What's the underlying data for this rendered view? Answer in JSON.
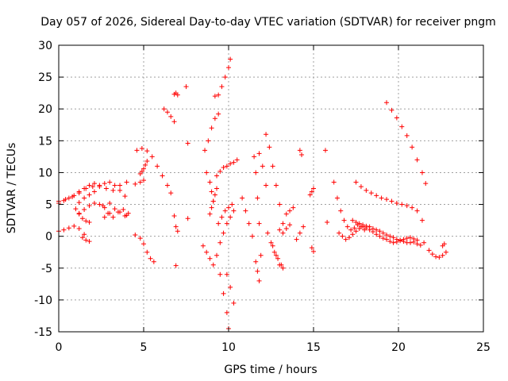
{
  "chart_data": {
    "type": "scatter",
    "title": "Day 057 of 2026, Sidereal Day-to-day VTEC variation (SDTVAR) for receiver pngm",
    "xlabel": "GPS time / hours",
    "ylabel": "SDTVAR / TECUs",
    "xlim": [
      0,
      25
    ],
    "ylim": [
      -15,
      30
    ],
    "xticks": [
      0,
      5,
      10,
      15,
      20,
      25
    ],
    "yticks": [
      -15,
      -10,
      -5,
      0,
      5,
      10,
      15,
      20,
      25,
      30
    ],
    "xtick_labels": [
      "0",
      "5",
      "10",
      "15",
      "20",
      "25"
    ],
    "ytick_labels": [
      "-15",
      "-10",
      "-5",
      "0",
      "5",
      "10",
      "15",
      "20",
      "25",
      "30"
    ],
    "grid": true,
    "marker": "plus",
    "color": "#ff0000",
    "series": [
      {
        "name": "a1",
        "x": [
          0.0,
          0.4,
          0.8,
          1.2,
          1.6,
          2.0,
          2.4,
          2.8,
          3.2,
          3.6,
          4.0
        ],
        "y": [
          5.5,
          5.8,
          6.2,
          6.8,
          7.5,
          7.8,
          8.0,
          7.5,
          7.2,
          8.0,
          8.5
        ]
      },
      {
        "name": "a2",
        "x": [
          0.0,
          0.3,
          0.6,
          0.9,
          1.2,
          1.5,
          1.8,
          2.1
        ],
        "y": [
          5.2,
          5.6,
          6.0,
          6.4,
          7.0,
          7.5,
          8.0,
          8.3
        ]
      },
      {
        "name": "a3",
        "x": [
          1.2,
          1.5,
          1.8,
          2.1,
          2.4,
          2.7,
          3.0,
          3.3,
          3.6,
          3.9
        ],
        "y": [
          5.3,
          6.0,
          6.5,
          7.0,
          7.8,
          8.3,
          8.5,
          8.0,
          7.2,
          6.3
        ]
      },
      {
        "name": "a4",
        "x": [
          2.6,
          2.9,
          3.2,
          3.5,
          3.8,
          4.0
        ],
        "y": [
          4.8,
          3.6,
          3.0,
          3.8,
          4.2,
          3.3
        ]
      },
      {
        "name": "b1",
        "x": [
          1.2,
          1.5,
          1.8,
          2.1,
          2.4,
          2.7,
          3.0
        ],
        "y": [
          3.5,
          4.2,
          4.8,
          5.2,
          5.0,
          4.5,
          5.2
        ]
      },
      {
        "name": "b2",
        "x": [
          1.0,
          1.2,
          1.4,
          1.6,
          1.8
        ],
        "y": [
          4.3,
          3.6,
          2.8,
          2.4,
          2.2
        ]
      },
      {
        "name": "b3",
        "x": [
          2.7,
          3.0,
          3.3,
          3.6,
          3.9,
          4.1
        ],
        "y": [
          3.0,
          3.6,
          4.3,
          3.8,
          3.2,
          3.6
        ]
      },
      {
        "name": "c1",
        "x": [
          0.0,
          0.3,
          0.6,
          0.9,
          1.2,
          1.5
        ],
        "y": [
          0.8,
          1.0,
          1.3,
          1.6,
          1.2,
          0.3
        ]
      },
      {
        "name": "c2",
        "x": [
          1.4,
          1.6,
          1.8
        ],
        "y": [
          -0.2,
          -0.6,
          -0.8
        ]
      },
      {
        "name": "d1",
        "x": [
          4.6,
          4.9,
          5.2,
          5.5,
          5.8,
          6.1,
          6.4,
          6.6
        ],
        "y": [
          13.5,
          13.8,
          13.4,
          12.5,
          11.0,
          9.5,
          8.0,
          6.8
        ]
      },
      {
        "name": "d2",
        "x": [
          4.8,
          4.9,
          5.0,
          5.1,
          5.2
        ],
        "y": [
          9.8,
          10.2,
          10.6,
          11.2,
          11.8
        ]
      },
      {
        "name": "d3",
        "x": [
          4.5,
          4.8,
          5.0,
          5.2,
          5.4,
          5.6
        ],
        "y": [
          0.2,
          -0.3,
          -1.2,
          -2.5,
          -3.5,
          -4.0
        ]
      },
      {
        "name": "d4",
        "x": [
          4.5,
          4.8,
          5.0
        ],
        "y": [
          8.2,
          8.5,
          8.8
        ]
      },
      {
        "name": "e1",
        "x": [
          6.2,
          6.4,
          6.6,
          6.8
        ],
        "y": [
          20.0,
          19.5,
          18.8,
          18.0
        ]
      },
      {
        "name": "e2",
        "x": [
          6.8,
          6.9,
          7.0
        ],
        "y": [
          22.3,
          22.5,
          22.2
        ]
      },
      {
        "name": "e3",
        "x": [
          6.8,
          6.9,
          7.0
        ],
        "y": [
          3.2,
          1.5,
          0.8
        ]
      },
      {
        "name": "e4",
        "x": [
          7.5,
          7.6
        ],
        "y": [
          23.5,
          14.6
        ]
      },
      {
        "name": "e5",
        "x": [
          6.9,
          7.6
        ],
        "y": [
          -4.6,
          2.8
        ]
      },
      {
        "name": "f1",
        "x": [
          8.6,
          8.8,
          9.0,
          9.2,
          9.4
        ],
        "y": [
          13.5,
          15.0,
          17.0,
          18.5,
          19.2
        ]
      },
      {
        "name": "f2",
        "x": [
          8.7,
          8.9,
          9.0,
          9.1
        ],
        "y": [
          10.0,
          8.5,
          7.0,
          5.5
        ]
      },
      {
        "name": "f3",
        "x": [
          8.9,
          9.0,
          9.1,
          9.2,
          9.3
        ],
        "y": [
          3.5,
          4.5,
          5.5,
          6.5,
          7.5
        ]
      },
      {
        "name": "f4",
        "x": [
          8.5,
          8.7,
          8.9,
          9.1
        ],
        "y": [
          -1.5,
          -2.5,
          -3.5,
          -4.5
        ]
      },
      {
        "name": "g1",
        "x": [
          9.2,
          9.4,
          9.6,
          9.8,
          10.0,
          10.1
        ],
        "y": [
          22.0,
          22.2,
          23.5,
          25.0,
          26.5,
          27.8
        ]
      },
      {
        "name": "g2",
        "x": [
          9.3,
          9.5,
          9.7,
          9.9,
          10.1,
          10.3,
          10.5
        ],
        "y": [
          9.5,
          10.2,
          10.8,
          11.0,
          11.4,
          11.6,
          12.0
        ]
      },
      {
        "name": "g3",
        "x": [
          9.3,
          9.5,
          9.7,
          9.9,
          10.0
        ],
        "y": [
          -3.0,
          -6.0,
          -9.0,
          -12.0,
          -14.5
        ]
      },
      {
        "name": "g4",
        "x": [
          9.4,
          9.6,
          9.8,
          10.0,
          10.2
        ],
        "y": [
          2.0,
          3.0,
          4.0,
          4.5,
          5.0
        ]
      },
      {
        "name": "g5",
        "x": [
          9.5,
          9.7,
          9.9,
          10.1,
          10.3
        ],
        "y": [
          -1.0,
          0.5,
          2.0,
          3.0,
          4.0
        ]
      },
      {
        "name": "g6",
        "x": [
          9.9,
          10.1,
          10.3
        ],
        "y": [
          -6.0,
          -8.0,
          -10.5
        ]
      },
      {
        "name": "h1",
        "x": [
          10.8,
          11.0,
          11.2,
          11.4
        ],
        "y": [
          6.0,
          4.0,
          2.0,
          0.0
        ]
      },
      {
        "name": "h2",
        "x": [
          11.5,
          11.6,
          11.7,
          11.8,
          11.9
        ],
        "y": [
          12.5,
          10.0,
          6.0,
          2.0,
          -3.0
        ]
      },
      {
        "name": "h3",
        "x": [
          11.6,
          11.7,
          11.8
        ],
        "y": [
          -4.0,
          -5.5,
          -7.0
        ]
      },
      {
        "name": "h4",
        "x": [
          11.8,
          12.0,
          12.2
        ],
        "y": [
          13.0,
          11.0,
          8.0
        ]
      },
      {
        "name": "i1",
        "x": [
          12.2,
          12.4,
          12.6,
          12.8,
          13.0,
          13.2
        ],
        "y": [
          16.0,
          14.0,
          11.0,
          8.0,
          5.0,
          2.0
        ]
      },
      {
        "name": "i2",
        "x": [
          12.3,
          12.5,
          12.7,
          12.9,
          13.1
        ],
        "y": [
          0.5,
          -1.0,
          -2.5,
          -3.5,
          -4.5
        ]
      },
      {
        "name": "i3",
        "x": [
          12.6,
          12.8,
          13.0,
          13.2
        ],
        "y": [
          -1.5,
          -3.0,
          -4.5,
          -5.0
        ]
      },
      {
        "name": "i4",
        "x": [
          13.0,
          13.2,
          13.4,
          13.6
        ],
        "y": [
          1.0,
          0.5,
          1.2,
          1.8
        ]
      },
      {
        "name": "i5",
        "x": [
          13.4,
          13.6,
          13.8
        ],
        "y": [
          3.5,
          4.0,
          4.5
        ]
      },
      {
        "name": "j1",
        "x": [
          14.0,
          14.2,
          14.4
        ],
        "y": [
          -0.5,
          0.5,
          1.5
        ]
      },
      {
        "name": "j2",
        "x": [
          14.2,
          14.3
        ],
        "y": [
          13.5,
          12.8
        ]
      },
      {
        "name": "j3",
        "x": [
          14.8,
          14.9,
          15.0
        ],
        "y": [
          6.5,
          7.0,
          7.5
        ]
      },
      {
        "name": "j4",
        "x": [
          14.9,
          15.0
        ],
        "y": [
          -1.8,
          -2.4
        ]
      },
      {
        "name": "k1",
        "x": [
          15.7,
          15.8
        ],
        "y": [
          13.5,
          2.2
        ]
      },
      {
        "name": "l1",
        "x": [
          16.2,
          16.4,
          16.6,
          16.8,
          17.0,
          17.2,
          17.4,
          17.6,
          17.8,
          18.0
        ],
        "y": [
          8.5,
          6.0,
          4.0,
          2.5,
          1.5,
          1.0,
          1.3,
          1.8,
          1.5,
          1.0
        ]
      },
      {
        "name": "l2",
        "x": [
          16.5,
          16.7,
          16.9,
          17.1,
          17.3,
          17.5,
          17.7,
          17.9,
          18.1,
          18.3,
          18.5,
          18.7,
          18.9,
          19.1,
          19.3,
          19.5,
          19.7,
          19.9,
          20.1,
          20.3,
          20.5,
          20.7,
          20.9,
          21.1,
          21.3,
          21.5
        ],
        "y": [
          0.5,
          0.0,
          -0.5,
          -0.2,
          0.3,
          0.8,
          1.2,
          1.5,
          1.3,
          1.0,
          0.7,
          0.3,
          0.0,
          -0.3,
          -0.5,
          -0.8,
          -1.0,
          -0.9,
          -0.7,
          -0.8,
          -1.0,
          -1.0,
          -0.9,
          -1.2,
          -1.4,
          -1.0
        ]
      },
      {
        "name": "l3",
        "x": [
          17.3,
          17.5,
          17.7,
          17.9,
          18.1,
          18.3,
          18.5,
          18.7,
          18.9,
          19.1,
          19.3,
          19.5,
          19.7,
          19.9,
          20.1,
          20.3,
          20.5,
          20.7,
          20.9,
          21.1
        ],
        "y": [
          2.5,
          2.2,
          2.0,
          1.8,
          1.6,
          1.5,
          1.2,
          1.0,
          0.8,
          0.5,
          0.2,
          0.0,
          -0.2,
          -0.5,
          -0.6,
          -0.5,
          -0.3,
          -0.2,
          -0.4,
          -0.6
        ]
      },
      {
        "name": "m1",
        "x": [
          17.5,
          17.8,
          18.1,
          18.4,
          18.7,
          19.0,
          19.3,
          19.6,
          19.9,
          20.2,
          20.5,
          20.8,
          21.1,
          21.4
        ],
        "y": [
          8.5,
          7.8,
          7.2,
          6.8,
          6.4,
          6.0,
          5.8,
          5.5,
          5.2,
          5.0,
          4.8,
          4.5,
          4.0,
          2.5
        ]
      },
      {
        "name": "n1",
        "x": [
          19.3,
          19.6,
          19.9,
          20.2,
          20.5,
          20.8,
          21.1,
          21.4,
          21.6
        ],
        "y": [
          21.0,
          19.8,
          18.6,
          17.2,
          15.8,
          14.0,
          12.0,
          10.0,
          8.3
        ]
      },
      {
        "name": "o1",
        "x": [
          21.8,
          22.0,
          22.2,
          22.4,
          22.6,
          22.8
        ],
        "y": [
          -2.2,
          -2.8,
          -3.2,
          -3.3,
          -3.0,
          -2.5
        ]
      },
      {
        "name": "o2",
        "x": [
          22.6,
          22.7
        ],
        "y": [
          -1.5,
          -1.2
        ]
      }
    ]
  }
}
